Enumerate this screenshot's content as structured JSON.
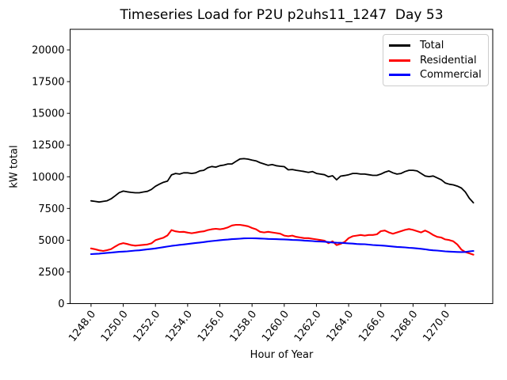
{
  "figure": {
    "title": "Timeseries Load for P2U p2uhs11_1247  Day 53",
    "background": "#ffffff"
  },
  "chart_data": {
    "type": "line",
    "title": "Timeseries Load for P2U p2uhs11_1247  Day 53",
    "xlabel": "Hour of Year",
    "ylabel": "kW total",
    "grid": false,
    "xlim": [
      1246.7,
      1272.95
    ],
    "ylim": [
      0,
      21625
    ],
    "xticks": [
      1248,
      1250,
      1252,
      1254,
      1256,
      1258,
      1260,
      1262,
      1264,
      1266,
      1268,
      1270
    ],
    "xtick_labels": [
      "1248.0",
      "1250.0",
      "1252.0",
      "1254.0",
      "1256.0",
      "1258.0",
      "1260.0",
      "1262.0",
      "1264.0",
      "1266.0",
      "1268.0",
      "1270.0"
    ],
    "yticks": [
      0,
      2500,
      5000,
      7500,
      10000,
      12500,
      15000,
      17500,
      20000
    ],
    "ytick_labels": [
      "0",
      "2500",
      "5000",
      "7500",
      "10000",
      "12500",
      "15000",
      "17500",
      "20000"
    ],
    "legend": {
      "position": "upper right",
      "entries": [
        {
          "label": "Total",
          "color": "#000000"
        },
        {
          "label": "Residential",
          "color": "#ff0000"
        },
        {
          "label": "Commercial",
          "color": "#0000ff"
        }
      ]
    },
    "x": [
      1248.0,
      1248.25,
      1248.5,
      1248.75,
      1249.0,
      1249.25,
      1249.5,
      1249.75,
      1250.0,
      1250.25,
      1250.5,
      1250.75,
      1251.0,
      1251.25,
      1251.5,
      1251.75,
      1252.0,
      1252.25,
      1252.5,
      1252.75,
      1253.0,
      1253.25,
      1253.5,
      1253.75,
      1254.0,
      1254.25,
      1254.5,
      1254.75,
      1255.0,
      1255.25,
      1255.5,
      1255.75,
      1256.0,
      1256.25,
      1256.5,
      1256.75,
      1257.0,
      1257.25,
      1257.5,
      1257.75,
      1258.0,
      1258.25,
      1258.5,
      1258.75,
      1259.0,
      1259.25,
      1259.5,
      1259.75,
      1260.0,
      1260.25,
      1260.5,
      1260.75,
      1261.0,
      1261.25,
      1261.5,
      1261.75,
      1262.0,
      1262.25,
      1262.5,
      1262.75,
      1263.0,
      1263.25,
      1263.5,
      1263.75,
      1264.0,
      1264.25,
      1264.5,
      1264.75,
      1265.0,
      1265.25,
      1265.5,
      1265.75,
      1266.0,
      1266.25,
      1266.5,
      1266.75,
      1267.0,
      1267.25,
      1267.5,
      1267.75,
      1268.0,
      1268.25,
      1268.5,
      1268.75,
      1269.0,
      1269.25,
      1269.5,
      1269.75,
      1270.0,
      1270.25,
      1270.5,
      1270.75,
      1271.0,
      1271.25,
      1271.5,
      1271.75
    ],
    "series": [
      {
        "name": "Total",
        "color": "#000000",
        "values": [
          8100,
          8060,
          8010,
          8060,
          8110,
          8260,
          8500,
          8750,
          8870,
          8810,
          8770,
          8740,
          8740,
          8800,
          8850,
          9000,
          9250,
          9420,
          9570,
          9660,
          10150,
          10260,
          10210,
          10310,
          10310,
          10260,
          10310,
          10460,
          10510,
          10710,
          10810,
          10760,
          10870,
          10920,
          11010,
          11010,
          11210,
          11400,
          11430,
          11390,
          11310,
          11250,
          11110,
          11010,
          10900,
          10960,
          10870,
          10830,
          10800,
          10550,
          10570,
          10510,
          10460,
          10410,
          10350,
          10410,
          10260,
          10210,
          10160,
          10000,
          10080,
          9760,
          10050,
          10100,
          10160,
          10260,
          10260,
          10210,
          10210,
          10160,
          10110,
          10110,
          10210,
          10360,
          10460,
          10310,
          10210,
          10260,
          10410,
          10510,
          10510,
          10460,
          10260,
          10060,
          10010,
          10060,
          9910,
          9760,
          9510,
          9410,
          9360,
          9260,
          9110,
          8800,
          8300,
          7950
        ]
      },
      {
        "name": "Residential",
        "color": "#ff0000",
        "values": [
          4350,
          4290,
          4200,
          4150,
          4210,
          4300,
          4500,
          4680,
          4770,
          4700,
          4610,
          4570,
          4600,
          4630,
          4660,
          4750,
          5000,
          5100,
          5200,
          5380,
          5800,
          5700,
          5650,
          5660,
          5600,
          5550,
          5600,
          5660,
          5700,
          5800,
          5860,
          5900,
          5860,
          5910,
          6010,
          6160,
          6210,
          6210,
          6160,
          6100,
          5960,
          5860,
          5660,
          5610,
          5660,
          5610,
          5560,
          5510,
          5360,
          5310,
          5360,
          5260,
          5210,
          5160,
          5160,
          5110,
          5060,
          5010,
          4960,
          4760,
          4910,
          4610,
          4710,
          4860,
          5160,
          5310,
          5360,
          5410,
          5360,
          5410,
          5410,
          5460,
          5710,
          5760,
          5610,
          5510,
          5610,
          5710,
          5810,
          5880,
          5810,
          5710,
          5610,
          5760,
          5610,
          5410,
          5260,
          5210,
          5060,
          5010,
          4910,
          4660,
          4260,
          4060,
          3960,
          3860
        ]
      },
      {
        "name": "Commercial",
        "color": "#0000ff",
        "values": [
          3900,
          3920,
          3940,
          3970,
          4000,
          4020,
          4050,
          4080,
          4100,
          4120,
          4150,
          4180,
          4200,
          4240,
          4280,
          4310,
          4350,
          4400,
          4450,
          4500,
          4550,
          4590,
          4630,
          4660,
          4700,
          4740,
          4780,
          4810,
          4850,
          4890,
          4930,
          4960,
          5000,
          5030,
          5050,
          5080,
          5100,
          5120,
          5140,
          5150,
          5150,
          5140,
          5130,
          5120,
          5100,
          5090,
          5080,
          5070,
          5060,
          5040,
          5020,
          5010,
          5000,
          4970,
          4950,
          4930,
          4900,
          4890,
          4880,
          4850,
          4820,
          4800,
          4790,
          4770,
          4750,
          4730,
          4700,
          4690,
          4680,
          4650,
          4620,
          4600,
          4580,
          4560,
          4530,
          4500,
          4470,
          4450,
          4430,
          4400,
          4380,
          4350,
          4320,
          4280,
          4230,
          4200,
          4180,
          4150,
          4120,
          4100,
          4080,
          4070,
          4060,
          4070,
          4120,
          4150
        ]
      }
    ]
  }
}
